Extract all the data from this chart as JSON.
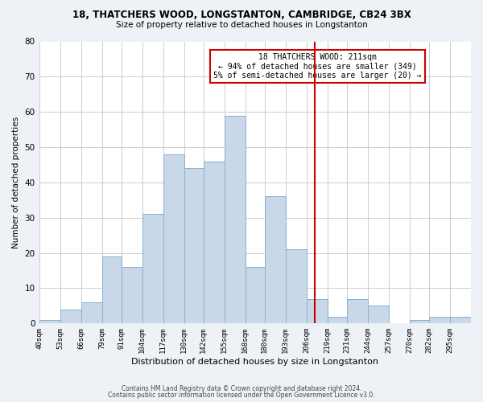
{
  "title1": "18, THATCHERS WOOD, LONGSTANTON, CAMBRIDGE, CB24 3BX",
  "title2": "Size of property relative to detached houses in Longstanton",
  "xlabel": "Distribution of detached houses by size in Longstanton",
  "ylabel": "Number of detached properties",
  "bin_labels": [
    "40sqm",
    "53sqm",
    "66sqm",
    "79sqm",
    "91sqm",
    "104sqm",
    "117sqm",
    "130sqm",
    "142sqm",
    "155sqm",
    "168sqm",
    "180sqm",
    "193sqm",
    "206sqm",
    "219sqm",
    "231sqm",
    "244sqm",
    "257sqm",
    "270sqm",
    "282sqm",
    "295sqm"
  ],
  "bar_heights": [
    1,
    4,
    6,
    19,
    16,
    31,
    48,
    44,
    46,
    59,
    16,
    36,
    21,
    7,
    2,
    7,
    5,
    0,
    1,
    2,
    2
  ],
  "bar_color": "#c8d8e8",
  "bar_edgecolor": "#8ab0cc",
  "vline_x_bin_index": 13,
  "vline_color": "#cc0000",
  "annotation_title": "18 THATCHERS WOOD: 211sqm",
  "annotation_line1": "← 94% of detached houses are smaller (349)",
  "annotation_line2": "5% of semi-detached houses are larger (20) →",
  "annotation_box_edgecolor": "#cc0000",
  "ylim": [
    0,
    80
  ],
  "yticks": [
    0,
    10,
    20,
    30,
    40,
    50,
    60,
    70,
    80
  ],
  "footnote1": "Contains HM Land Registry data © Crown copyright and database right 2024.",
  "footnote2": "Contains public sector information licensed under the Open Government Licence v3.0.",
  "bg_color": "#eef2f7",
  "plot_bg_color": "#ffffff",
  "grid_color": "#cccccc"
}
